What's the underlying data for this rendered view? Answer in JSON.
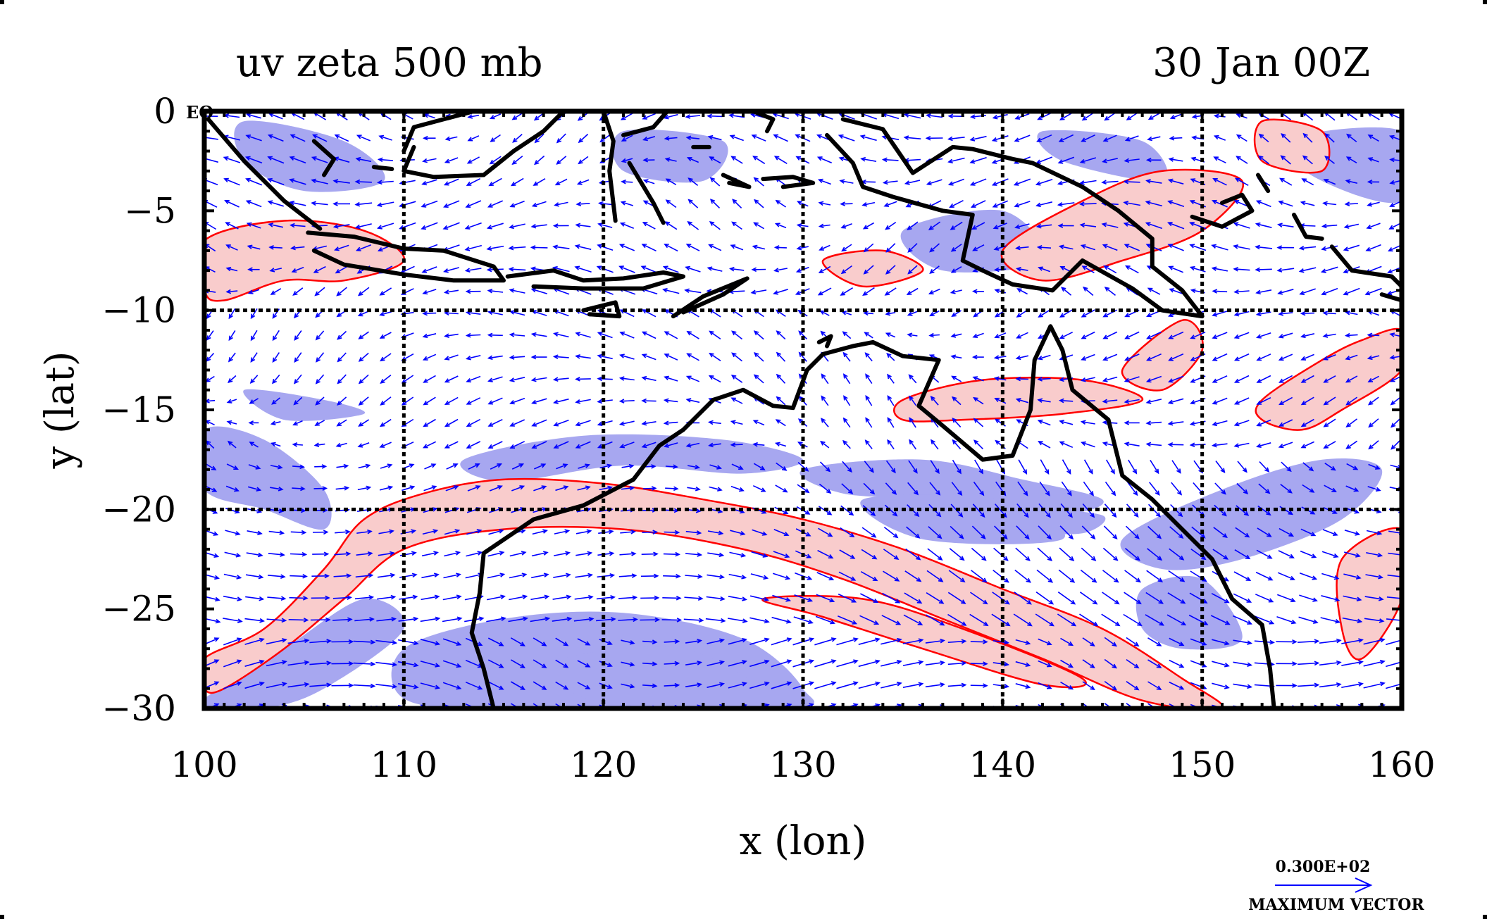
{
  "chart_data": {
    "type": "vector-contour-map",
    "title_left": "uv zeta 500 mb",
    "title_right": "30 Jan 00Z",
    "xlabel": "x (lon)",
    "ylabel": "y (lat)",
    "x_ticks": [
      {
        "value": 100,
        "label": "100"
      },
      {
        "value": 110,
        "label": "110"
      },
      {
        "value": 120,
        "label": "120"
      },
      {
        "value": 130,
        "label": "130"
      },
      {
        "value": 140,
        "label": "140"
      },
      {
        "value": 150,
        "label": "150"
      },
      {
        "value": 160,
        "label": "160"
      }
    ],
    "y_ticks": [
      {
        "value": 0,
        "label": "0"
      },
      {
        "value": -5,
        "label": "−5"
      },
      {
        "value": -10,
        "label": "−10"
      },
      {
        "value": -15,
        "label": "−15"
      },
      {
        "value": -20,
        "label": "−20"
      },
      {
        "value": -25,
        "label": "−25"
      },
      {
        "value": -30,
        "label": "−30"
      }
    ],
    "corner_label": "EQ",
    "xlim": [
      100,
      160
    ],
    "ylim": [
      -30,
      0
    ],
    "grid": true,
    "grid_lines_x": [
      110,
      120,
      130,
      140,
      150
    ],
    "grid_lines_y": [
      -10,
      -20
    ],
    "legend": {
      "vector_magnitude": "0.300E+02",
      "vector_caption": "MAXIMUM VECTOR",
      "placement": "bottom-right"
    },
    "colors": {
      "positive_fill": "#f9cccc",
      "positive_contour": "#ff0000",
      "negative_fill": "#a7a7f0",
      "vectors": "#0000ff",
      "coastline": "#000000"
    },
    "positive_vorticity_bands": [
      [
        [
          100,
          -27.5
        ],
        [
          103,
          -26
        ],
        [
          106,
          -23
        ],
        [
          108,
          -20.5
        ],
        [
          111,
          -19.2
        ],
        [
          115,
          -18.5
        ],
        [
          120,
          -18.7
        ],
        [
          125,
          -19.5
        ],
        [
          130,
          -20.5
        ],
        [
          135,
          -22
        ],
        [
          140,
          -24
        ],
        [
          145,
          -26
        ],
        [
          149,
          -28.5
        ],
        [
          151,
          -30
        ],
        [
          147,
          -29.6
        ],
        [
          142,
          -27.5
        ],
        [
          137,
          -25.5
        ],
        [
          132,
          -23.5
        ],
        [
          127,
          -22
        ],
        [
          121,
          -21
        ],
        [
          115,
          -21
        ],
        [
          110,
          -22
        ],
        [
          107,
          -24.5
        ],
        [
          104,
          -27
        ],
        [
          101,
          -29
        ],
        [
          100,
          -29
        ]
      ],
      [
        [
          128,
          -24.5
        ],
        [
          133,
          -24.5
        ],
        [
          138,
          -26
        ],
        [
          144,
          -28.5
        ],
        [
          142,
          -28.8
        ],
        [
          136,
          -27
        ],
        [
          131,
          -25.4
        ]
      ],
      [
        [
          100,
          -6.5
        ],
        [
          104,
          -5.5
        ],
        [
          108,
          -6
        ],
        [
          110,
          -7.5
        ],
        [
          107,
          -8.5
        ],
        [
          104,
          -8.5
        ],
        [
          101,
          -9.5
        ],
        [
          100,
          -9
        ]
      ],
      [
        [
          135,
          -14.5
        ],
        [
          139,
          -13.5
        ],
        [
          144,
          -13.5
        ],
        [
          147,
          -14.5
        ],
        [
          143,
          -15.2
        ],
        [
          138,
          -15.5
        ],
        [
          135,
          -15.5
        ]
      ],
      [
        [
          146,
          -13
        ],
        [
          149,
          -10.5
        ],
        [
          150,
          -12
        ],
        [
          148,
          -14
        ]
      ],
      [
        [
          153,
          -14.5
        ],
        [
          156,
          -12.5
        ],
        [
          158,
          -11.5
        ],
        [
          160,
          -11
        ],
        [
          160,
          -13
        ],
        [
          157,
          -15
        ],
        [
          155,
          -16
        ],
        [
          153,
          -15.5
        ]
      ],
      [
        [
          157,
          -22.5
        ],
        [
          160,
          -21
        ],
        [
          160,
          -24.5
        ],
        [
          158,
          -27.5
        ],
        [
          157,
          -26
        ]
      ],
      [
        [
          140,
          -7
        ],
        [
          144,
          -4.5
        ],
        [
          148,
          -3
        ],
        [
          152,
          -3.5
        ],
        [
          150,
          -6
        ],
        [
          146,
          -7.5
        ],
        [
          142,
          -8.5
        ]
      ],
      [
        [
          153,
          -0.5
        ],
        [
          156,
          -1
        ],
        [
          156,
          -3
        ],
        [
          153,
          -2.5
        ]
      ],
      [
        [
          131,
          -7.5
        ],
        [
          134,
          -7
        ],
        [
          136,
          -8
        ],
        [
          133,
          -8.8
        ]
      ]
    ],
    "negative_vorticity_bands": [
      [
        [
          110,
          -27
        ],
        [
          115,
          -25.5
        ],
        [
          121,
          -25.2
        ],
        [
          127,
          -26.5
        ],
        [
          130,
          -29
        ],
        [
          129,
          -30
        ],
        [
          115,
          -30
        ],
        [
          110,
          -29.5
        ]
      ],
      [
        [
          100,
          -29.5
        ],
        [
          104,
          -27
        ],
        [
          108,
          -24.5
        ],
        [
          110,
          -26
        ],
        [
          106,
          -29
        ],
        [
          103,
          -30
        ],
        [
          100,
          -30
        ]
      ],
      [
        [
          113,
          -17.5
        ],
        [
          119,
          -16.3
        ],
        [
          126,
          -16.5
        ],
        [
          130,
          -17.5
        ],
        [
          127,
          -18.2
        ],
        [
          121,
          -17.8
        ],
        [
          115,
          -18.6
        ]
      ],
      [
        [
          130,
          -18
        ],
        [
          136,
          -17.5
        ],
        [
          141,
          -18.5
        ],
        [
          145,
          -19.5
        ],
        [
          143,
          -20.2
        ],
        [
          137,
          -19.5
        ],
        [
          132,
          -19.2
        ]
      ],
      [
        [
          100,
          -16
        ],
        [
          103,
          -16.5
        ],
        [
          106,
          -19
        ],
        [
          106,
          -21
        ],
        [
          103,
          -20
        ],
        [
          100,
          -19
        ]
      ],
      [
        [
          102,
          -14
        ],
        [
          106,
          -14.5
        ],
        [
          108,
          -15.2
        ],
        [
          104,
          -15.5
        ]
      ],
      [
        [
          141,
          -20
        ],
        [
          145,
          -20.3
        ],
        [
          144,
          -21.2
        ],
        [
          141,
          -21
        ]
      ],
      [
        [
          146,
          -21.5
        ],
        [
          151,
          -19
        ],
        [
          156,
          -17.5
        ],
        [
          159,
          -18
        ],
        [
          157,
          -20.5
        ],
        [
          152,
          -22.5
        ],
        [
          148,
          -23
        ]
      ],
      [
        [
          147,
          -24
        ],
        [
          150,
          -23.5
        ],
        [
          152,
          -26.5
        ],
        [
          149,
          -27
        ],
        [
          147,
          -26
        ]
      ],
      [
        [
          102,
          -0.5
        ],
        [
          107,
          -1.5
        ],
        [
          109,
          -3.5
        ],
        [
          105,
          -4
        ],
        [
          102,
          -2.5
        ]
      ],
      [
        [
          121,
          -1
        ],
        [
          126,
          -1.5
        ],
        [
          125,
          -3.5
        ],
        [
          121,
          -3
        ]
      ],
      [
        [
          135,
          -6
        ],
        [
          140,
          -5
        ],
        [
          142,
          -7.5
        ],
        [
          137,
          -8
        ]
      ],
      [
        [
          142,
          -1
        ],
        [
          147,
          -1.5
        ],
        [
          148,
          -3.5
        ],
        [
          143,
          -2.5
        ]
      ],
      [
        [
          154,
          -1.5
        ],
        [
          160,
          -1
        ],
        [
          160,
          -4.5
        ],
        [
          156,
          -3.5
        ]
      ],
      [
        [
          133,
          -19.5
        ],
        [
          140,
          -19.5
        ],
        [
          143,
          -21.5
        ],
        [
          136,
          -21.5
        ]
      ],
      [
        [
          118,
          -27.5
        ],
        [
          124,
          -27
        ],
        [
          128,
          -29.5
        ],
        [
          122,
          -30
        ],
        [
          118,
          -29
        ]
      ]
    ],
    "coastlines": [
      [
        [
          114.5,
          -30
        ],
        [
          114.0,
          -28.0
        ],
        [
          113.4,
          -26.2
        ],
        [
          113.8,
          -24.2
        ],
        [
          114.0,
          -22.2
        ],
        [
          116.5,
          -20.5
        ],
        [
          119.0,
          -19.8
        ],
        [
          121.5,
          -18.5
        ],
        [
          122.8,
          -16.8
        ],
        [
          124.0,
          -16.0
        ],
        [
          125.5,
          -14.5
        ],
        [
          127.0,
          -14.0
        ],
        [
          128.5,
          -14.8
        ],
        [
          129.5,
          -14.9
        ],
        [
          130.2,
          -13.0
        ],
        [
          131.0,
          -12.2
        ],
        [
          132.5,
          -11.8
        ],
        [
          133.5,
          -11.6
        ],
        [
          135.0,
          -12.3
        ],
        [
          136.8,
          -12.5
        ],
        [
          135.8,
          -14.8
        ],
        [
          137.0,
          -15.8
        ],
        [
          139.0,
          -17.5
        ],
        [
          140.5,
          -17.3
        ],
        [
          141.4,
          -15.0
        ],
        [
          141.6,
          -12.5
        ],
        [
          142.4,
          -10.8
        ],
        [
          143.0,
          -12.0
        ],
        [
          143.5,
          -14.0
        ],
        [
          145.3,
          -15.5
        ],
        [
          146.0,
          -18.3
        ],
        [
          147.5,
          -19.5
        ],
        [
          149.0,
          -21.0
        ],
        [
          150.5,
          -22.5
        ],
        [
          151.5,
          -24.5
        ],
        [
          153.0,
          -25.8
        ],
        [
          153.4,
          -28.0
        ],
        [
          153.6,
          -30
        ]
      ],
      [
        [
          100.2,
          -0.4
        ],
        [
          102.0,
          -2.5
        ],
        [
          104.0,
          -4.5
        ],
        [
          105.8,
          -5.9
        ]
      ],
      [
        [
          105.2,
          -6.1
        ],
        [
          107.5,
          -6.3
        ],
        [
          110.0,
          -6.9
        ],
        [
          112.0,
          -7.0
        ],
        [
          114.5,
          -7.8
        ],
        [
          115.0,
          -8.5
        ],
        [
          112.5,
          -8.5
        ],
        [
          110.0,
          -8.2
        ],
        [
          107.0,
          -7.7
        ],
        [
          105.5,
          -7.0
        ]
      ],
      [
        [
          115.2,
          -8.3
        ],
        [
          117.5,
          -8.0
        ],
        [
          119.0,
          -8.5
        ],
        [
          121.0,
          -8.4
        ],
        [
          123.0,
          -8.1
        ],
        [
          124.0,
          -8.3
        ],
        [
          122.0,
          -8.9
        ],
        [
          119.0,
          -8.9
        ],
        [
          116.5,
          -8.8
        ]
      ],
      [
        [
          119.0,
          -10.0
        ],
        [
          120.6,
          -9.6
        ],
        [
          120.8,
          -10.3
        ],
        [
          119.3,
          -10.2
        ]
      ],
      [
        [
          123.5,
          -10.3
        ],
        [
          125.0,
          -9.3
        ],
        [
          127.2,
          -8.4
        ],
        [
          126.0,
          -9.2
        ],
        [
          124.0,
          -10.1
        ]
      ],
      [
        [
          105.5,
          -1.5
        ],
        [
          106.5,
          -2.4
        ],
        [
          106.0,
          -3.2
        ]
      ],
      [
        [
          108.5,
          -2.8
        ],
        [
          109.4,
          -2.9
        ]
      ],
      [
        [
          110.5,
          -1.8
        ],
        [
          110.0,
          -3.0
        ],
        [
          111.5,
          -3.3
        ],
        [
          114.0,
          -3.2
        ],
        [
          115.5,
          -2.0
        ],
        [
          117.0,
          -1.0
        ],
        [
          118.0,
          0
        ]
      ],
      [
        [
          113.5,
          0
        ],
        [
          110.5,
          -0.8
        ],
        [
          110.0,
          -2.0
        ]
      ],
      [
        [
          120.0,
          0
        ],
        [
          120.5,
          -1.5
        ],
        [
          120.3,
          -3.0
        ],
        [
          120.6,
          -5.5
        ]
      ],
      [
        [
          121.0,
          -1.2
        ],
        [
          122.5,
          -0.8
        ],
        [
          123.2,
          0
        ]
      ],
      [
        [
          121.3,
          -2.6
        ],
        [
          122.5,
          -4.6
        ],
        [
          123.0,
          -5.6
        ]
      ],
      [
        [
          124.5,
          -1.8
        ],
        [
          125.3,
          -1.8
        ]
      ],
      [
        [
          126.0,
          -3.2
        ],
        [
          127.3,
          -3.8
        ],
        [
          126.3,
          -3.6
        ]
      ],
      [
        [
          128.0,
          -3.4
        ],
        [
          129.5,
          -3.3
        ],
        [
          130.5,
          -3.6
        ],
        [
          129.0,
          -3.8
        ]
      ],
      [
        [
          127.5,
          0
        ],
        [
          128.5,
          -0.4
        ],
        [
          128.2,
          -1.0
        ]
      ],
      [
        [
          132.0,
          -0.4
        ],
        [
          134.0,
          -0.9
        ],
        [
          135.5,
          -3.1
        ],
        [
          137.5,
          -1.8
        ],
        [
          138.5,
          -1.9
        ],
        [
          140.5,
          -2.4
        ],
        [
          141.5,
          -2.6
        ],
        [
          144.0,
          -3.8
        ],
        [
          145.8,
          -5.0
        ],
        [
          147.5,
          -6.4
        ],
        [
          147.5,
          -7.8
        ],
        [
          149.0,
          -9.0
        ],
        [
          150.0,
          -10.3
        ],
        [
          148.0,
          -10.0
        ],
        [
          146.5,
          -8.9
        ],
        [
          144.0,
          -7.5
        ],
        [
          142.5,
          -9.0
        ],
        [
          140.5,
          -8.7
        ],
        [
          139.0,
          -8.0
        ],
        [
          138.0,
          -7.5
        ],
        [
          138.5,
          -5.2
        ],
        [
          137.0,
          -5.0
        ],
        [
          134.5,
          -4.3
        ],
        [
          133.0,
          -3.8
        ],
        [
          132.5,
          -2.6
        ],
        [
          131.2,
          -1.2
        ]
      ],
      [
        [
          130.8,
          -11.6
        ],
        [
          131.4,
          -11.3
        ],
        [
          131.2,
          -11.8
        ]
      ],
      [
        [
          149.5,
          -5.3
        ],
        [
          151.0,
          -5.8
        ],
        [
          152.5,
          -5.0
        ],
        [
          152.0,
          -4.2
        ],
        [
          151.0,
          -4.6
        ]
      ],
      [
        [
          152.8,
          -3.2
        ],
        [
          153.3,
          -4.0
        ]
      ],
      [
        [
          154.6,
          -5.2
        ],
        [
          155.2,
          -6.3
        ],
        [
          156.0,
          -6.4
        ]
      ],
      [
        [
          156.5,
          -6.8
        ],
        [
          157.5,
          -8.0
        ],
        [
          159.5,
          -8.3
        ],
        [
          160,
          -8.8
        ]
      ],
      [
        [
          159.0,
          -9.2
        ],
        [
          160,
          -9.5
        ]
      ]
    ]
  }
}
